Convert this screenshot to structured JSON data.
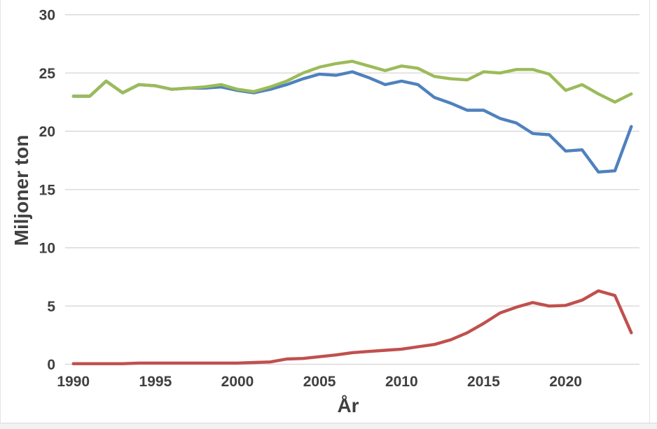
{
  "window": {
    "background_color": "#ffffff",
    "frame_color": "#e3e3e3",
    "bottom_bar_color": "#f1f1f1"
  },
  "chart_data": {
    "type": "line",
    "xlabel": "År",
    "ylabel": "Miljoner ton",
    "ylim": [
      0,
      30
    ],
    "yticks": [
      0,
      5,
      10,
      15,
      20,
      25,
      30
    ],
    "xticks": [
      1990,
      1995,
      2000,
      2005,
      2010,
      2015,
      2020
    ],
    "grid": "horizontal",
    "gridline_color": "#d9d9d9",
    "axis_text_color": "#404040",
    "legend_position": "none",
    "x": [
      1990,
      1991,
      1992,
      1993,
      1994,
      1995,
      1996,
      1997,
      1998,
      1999,
      2000,
      2001,
      2002,
      2003,
      2004,
      2005,
      2006,
      2007,
      2008,
      2009,
      2010,
      2011,
      2012,
      2013,
      2014,
      2015,
      2016,
      2017,
      2018,
      2019,
      2020,
      2021,
      2022,
      2023,
      2024
    ],
    "series": [
      {
        "name": "blue",
        "color": "#4F81BD",
        "values": [
          23.0,
          23.0,
          24.3,
          23.3,
          24.0,
          23.9,
          23.6,
          23.7,
          23.7,
          23.8,
          23.5,
          23.3,
          23.6,
          24.0,
          24.5,
          24.9,
          24.8,
          25.1,
          24.6,
          24.0,
          24.3,
          24.0,
          22.9,
          22.4,
          21.8,
          21.8,
          21.1,
          20.7,
          19.8,
          19.7,
          18.3,
          18.4,
          16.5,
          16.6,
          20.4
        ]
      },
      {
        "name": "green",
        "color": "#9BBB59",
        "values": [
          23.0,
          23.0,
          24.3,
          23.3,
          24.0,
          23.9,
          23.6,
          23.7,
          23.8,
          24.0,
          23.6,
          23.4,
          23.8,
          24.3,
          25.0,
          25.5,
          25.8,
          26.0,
          25.6,
          25.2,
          25.6,
          25.4,
          24.7,
          24.5,
          24.4,
          25.1,
          25.0,
          25.3,
          25.3,
          24.9,
          23.5,
          24.0,
          23.2,
          22.5,
          23.2
        ]
      },
      {
        "name": "red",
        "color": "#C0504D",
        "values": [
          0.05,
          0.05,
          0.05,
          0.05,
          0.1,
          0.1,
          0.1,
          0.1,
          0.1,
          0.1,
          0.1,
          0.15,
          0.2,
          0.45,
          0.5,
          0.65,
          0.8,
          1.0,
          1.1,
          1.2,
          1.3,
          1.5,
          1.7,
          2.1,
          2.7,
          3.5,
          4.4,
          4.9,
          5.3,
          5.0,
          5.05,
          5.5,
          6.3,
          5.9,
          2.7
        ]
      }
    ]
  }
}
